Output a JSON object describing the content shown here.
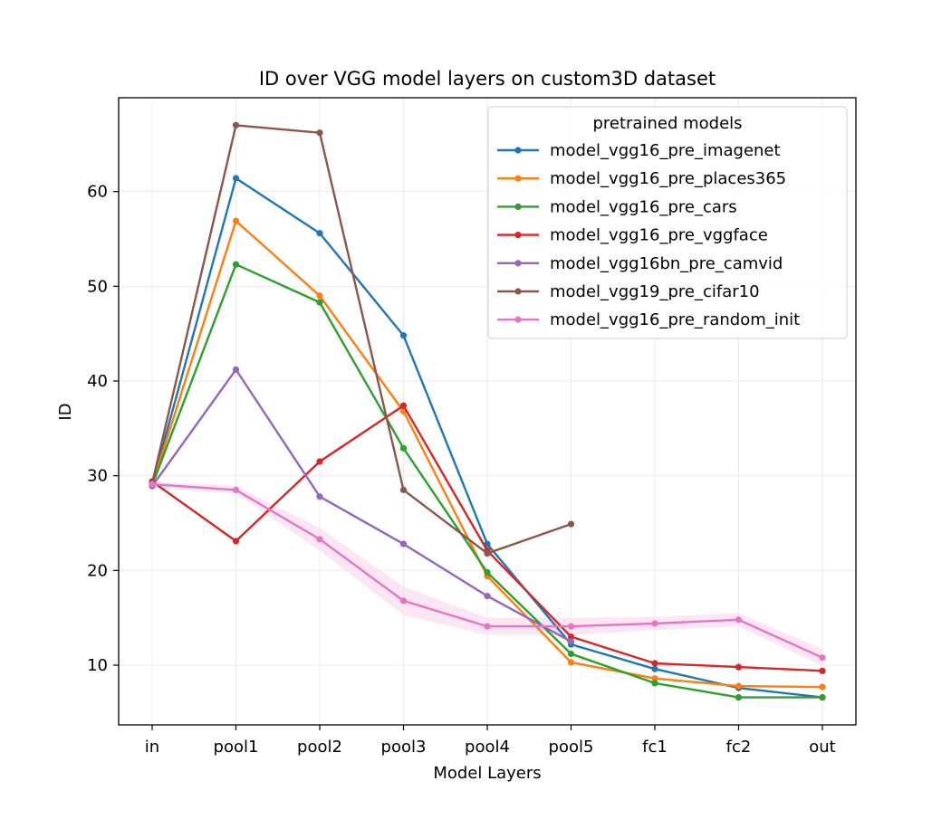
{
  "chart_data": {
    "type": "line",
    "title": "ID over VGG model layers on custom3D dataset",
    "xlabel": "Model Layers",
    "ylabel": "ID",
    "categories": [
      "in",
      "pool1",
      "pool2",
      "pool3",
      "pool4",
      "pool5",
      "fc1",
      "fc2",
      "out"
    ],
    "ylim": [
      3.7,
      69.9
    ],
    "yticks": [
      10,
      20,
      30,
      40,
      50,
      60
    ],
    "grid": true,
    "legend": {
      "title": "pretrained models",
      "placement": "top-right"
    },
    "series": [
      {
        "name": "model_vgg16_pre_imagenet",
        "color": "#1f77b4",
        "values": [
          29.0,
          61.4,
          55.6,
          44.8,
          22.8,
          12.2,
          9.6,
          7.6,
          6.6
        ]
      },
      {
        "name": "model_vgg16_pre_places365",
        "color": "#ff7f0e",
        "values": [
          29.0,
          56.9,
          49.0,
          36.8,
          19.4,
          10.3,
          8.6,
          7.8,
          7.7
        ]
      },
      {
        "name": "model_vgg16_pre_cars",
        "color": "#2ca02c",
        "values": [
          29.0,
          52.3,
          48.3,
          32.9,
          19.8,
          11.2,
          8.1,
          6.6,
          6.6
        ]
      },
      {
        "name": "model_vgg16_pre_vggface",
        "color": "#d62728",
        "values": [
          29.4,
          23.1,
          31.5,
          37.4,
          22.1,
          13.0,
          10.2,
          9.8,
          9.4
        ]
      },
      {
        "name": "model_vgg16bn_pre_camvid",
        "color": "#9467bd",
        "values": [
          28.9,
          41.2,
          27.8,
          22.8,
          17.3,
          12.5,
          null,
          null,
          null
        ]
      },
      {
        "name": "model_vgg19_pre_cifar10",
        "color": "#8c564b",
        "values": [
          29.2,
          67.0,
          66.2,
          28.5,
          21.8,
          24.9,
          null,
          null,
          null
        ]
      },
      {
        "name": "model_vgg16_pre_random_init",
        "color": "#e377c2",
        "band_color": "#fcdcee",
        "values": [
          29.1,
          28.5,
          23.3,
          16.8,
          14.1,
          14.1,
          14.4,
          14.8,
          10.8
        ],
        "band_lower": [
          28.8,
          28.1,
          22.1,
          15.3,
          13.2,
          13.2,
          13.7,
          14.1,
          9.9
        ],
        "band_upper": [
          29.4,
          28.9,
          24.5,
          18.3,
          15.0,
          15.0,
          15.1,
          15.5,
          11.7
        ]
      }
    ]
  }
}
